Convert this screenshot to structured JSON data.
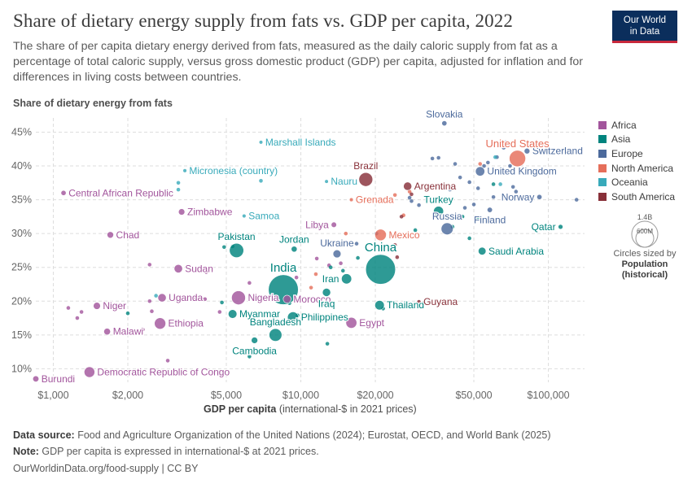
{
  "header": {
    "title": "Share of dietary energy supply from fats vs. GDP per capita, 2022",
    "subtitle": "The share of per capita dietary energy derived from fats, measured as the daily caloric supply from fat as a percentage of total caloric supply, versus gross domestic product (GDP) per capita, adjusted for inflation and for differences in living costs between countries.",
    "logo_line1": "Our World",
    "logo_line2": "in Data"
  },
  "axes": {
    "y_title": "Share of dietary energy from fats",
    "x_title_bold": "GDP per capita",
    "x_title_rest": " (international-$ in 2021 prices)"
  },
  "legend": {
    "regions": [
      {
        "name": "Africa",
        "color": "#a2559c"
      },
      {
        "name": "Asia",
        "color": "#00847e"
      },
      {
        "name": "Europe",
        "color": "#4c6a9c"
      },
      {
        "name": "North America",
        "color": "#e56e5a"
      },
      {
        "name": "Oceania",
        "color": "#38aaba"
      },
      {
        "name": "South America",
        "color": "#883039"
      }
    ],
    "size_key": {
      "large_label": "1.4B",
      "small_label": "600M",
      "note": "Circles sized by",
      "measure_line1": "Population",
      "measure_line2": "(historical)"
    }
  },
  "footer": {
    "source_label": "Data source:",
    "source_text": " Food and Agriculture Organization of the United Nations (2024); Eurostat, OECD, and World Bank (2025)",
    "note_label": "Note:",
    "note_text": " GDP per capita is expressed in international-$ at 2021 prices.",
    "link_text": "OurWorldinData.org/food-supply",
    "license_text": " | CC BY"
  },
  "chart_data": {
    "type": "scatter",
    "x_scale": "log",
    "xlim": [
      850,
      140000
    ],
    "ylim": [
      8,
      46.5
    ],
    "x_ticks": [
      {
        "value": 1000,
        "label": "$1,000"
      },
      {
        "value": 2000,
        "label": "$2,000"
      },
      {
        "value": 5000,
        "label": "$5,000"
      },
      {
        "value": 10000,
        "label": "$10,000"
      },
      {
        "value": 20000,
        "label": "$20,000"
      },
      {
        "value": 50000,
        "label": "$50,000"
      },
      {
        "value": 100000,
        "label": "$100,000"
      }
    ],
    "y_ticks": [
      {
        "value": 10,
        "label": "10%"
      },
      {
        "value": 15,
        "label": "15%"
      },
      {
        "value": 20,
        "label": "20%"
      },
      {
        "value": 25,
        "label": "25%"
      },
      {
        "value": 30,
        "label": "30%"
      },
      {
        "value": 35,
        "label": "35%"
      },
      {
        "value": 40,
        "label": "40%"
      },
      {
        "value": 45,
        "label": "45%"
      }
    ],
    "grid": true,
    "legend_position": "right",
    "labeled_points": [
      {
        "label": "Burundi",
        "x": 850,
        "y": 8.5,
        "region": "Africa",
        "pop": 13
      },
      {
        "label": "Democratic Republic of Congo",
        "x": 1400,
        "y": 9.5,
        "region": "Africa",
        "pop": 102
      },
      {
        "label": "Central African Republic",
        "x": 1100,
        "y": 36,
        "region": "Africa",
        "pop": 5
      },
      {
        "label": "Chad",
        "x": 1700,
        "y": 29.8,
        "region": "Africa",
        "pop": 18
      },
      {
        "label": "Niger",
        "x": 1500,
        "y": 19.3,
        "region": "Africa",
        "pop": 26
      },
      {
        "label": "Malawi",
        "x": 1650,
        "y": 15.5,
        "region": "Africa",
        "pop": 20
      },
      {
        "label": "Ethiopia",
        "x": 2700,
        "y": 16.7,
        "region": "Africa",
        "pop": 123
      },
      {
        "label": "Uganda",
        "x": 2750,
        "y": 20.5,
        "region": "Africa",
        "pop": 47
      },
      {
        "label": "Sudan",
        "x": 3200,
        "y": 24.8,
        "region": "Africa",
        "pop": 48
      },
      {
        "label": "Zimbabwe",
        "x": 3300,
        "y": 33.2,
        "region": "Africa",
        "pop": 16
      },
      {
        "label": "Nigeria",
        "x": 5600,
        "y": 20.5,
        "region": "Africa",
        "pop": 218
      },
      {
        "label": "Morocco",
        "x": 8800,
        "y": 20.3,
        "region": "Africa",
        "pop": 37
      },
      {
        "label": "Libya",
        "x": 13600,
        "y": 31.3,
        "region": "Africa",
        "pop": 7
      },
      {
        "label": "Egypt",
        "x": 16000,
        "y": 16.8,
        "region": "Africa",
        "pop": 111
      },
      {
        "label": "India",
        "x": 8500,
        "y": 21.7,
        "region": "Asia",
        "pop": 1420
      },
      {
        "label": "China",
        "x": 21000,
        "y": 24.7,
        "region": "Asia",
        "pop": 1412
      },
      {
        "label": "Pakistan",
        "x": 5500,
        "y": 27.5,
        "region": "Asia",
        "pop": 235
      },
      {
        "label": "Bangladesh",
        "x": 7900,
        "y": 15,
        "region": "Asia",
        "pop": 171
      },
      {
        "label": "Myanmar",
        "x": 5300,
        "y": 18.1,
        "region": "Asia",
        "pop": 54
      },
      {
        "label": "Philippines",
        "x": 9300,
        "y": 17.6,
        "region": "Asia",
        "pop": 115
      },
      {
        "label": "Cambodia",
        "x": 6500,
        "y": 14.2,
        "region": "Asia",
        "pop": 17
      },
      {
        "label": "Jordan",
        "x": 9400,
        "y": 27.7,
        "region": "Asia",
        "pop": 11
      },
      {
        "label": "Iraq",
        "x": 12700,
        "y": 21.3,
        "region": "Asia",
        "pop": 44
      },
      {
        "label": "Iran",
        "x": 15300,
        "y": 23.3,
        "region": "Asia",
        "pop": 89
      },
      {
        "label": "Thailand",
        "x": 20800,
        "y": 19.4,
        "region": "Asia",
        "pop": 71
      },
      {
        "label": "Turkey",
        "x": 36000,
        "y": 33.3,
        "region": "Asia",
        "pop": 85
      },
      {
        "label": "Saudi Arabia",
        "x": 54000,
        "y": 27.4,
        "region": "Asia",
        "pop": 36
      },
      {
        "label": "Qatar",
        "x": 112000,
        "y": 31,
        "region": "Asia",
        "pop": 3
      },
      {
        "label": "Slovakia",
        "x": 38000,
        "y": 46.3,
        "region": "Europe",
        "pop": 5
      },
      {
        "label": "Switzerland",
        "x": 82000,
        "y": 42.2,
        "region": "Europe",
        "pop": 9
      },
      {
        "label": "United Kingdom",
        "x": 53000,
        "y": 39.2,
        "region": "Europe",
        "pop": 67
      },
      {
        "label": "Norway",
        "x": 92000,
        "y": 35.4,
        "region": "Europe",
        "pop": 5
      },
      {
        "label": "Finland",
        "x": 58000,
        "y": 33.5,
        "region": "Europe",
        "pop": 6
      },
      {
        "label": "Russia",
        "x": 39000,
        "y": 30.7,
        "region": "Europe",
        "pop": 145
      },
      {
        "label": "Ukraine",
        "x": 14000,
        "y": 27,
        "region": "Europe",
        "pop": 40
      },
      {
        "label": "United States",
        "x": 75000,
        "y": 41.1,
        "region": "North America",
        "pop": 335
      },
      {
        "label": "Mexico",
        "x": 21000,
        "y": 29.8,
        "region": "North America",
        "pop": 128
      },
      {
        "label": "Grenada",
        "x": 16000,
        "y": 35,
        "region": "North America",
        "pop": 0.1
      },
      {
        "label": "Marshall Islands",
        "x": 6900,
        "y": 43.5,
        "region": "Oceania",
        "pop": 0.04
      },
      {
        "label": "Micronesia (country)",
        "x": 3400,
        "y": 39.3,
        "region": "Oceania",
        "pop": 0.1
      },
      {
        "label": "Nauru",
        "x": 12700,
        "y": 37.7,
        "region": "Oceania",
        "pop": 0.01
      },
      {
        "label": "Samoa",
        "x": 5900,
        "y": 32.6,
        "region": "Oceania",
        "pop": 0.2
      },
      {
        "label": "Brazil",
        "x": 18300,
        "y": 38,
        "region": "South America",
        "pop": 216
      },
      {
        "label": "Argentina",
        "x": 27000,
        "y": 37,
        "region": "South America",
        "pop": 46
      },
      {
        "label": "Guyana",
        "x": 30000,
        "y": 19.9,
        "region": "South America",
        "pop": 0.8
      }
    ],
    "unlabeled_points": [
      {
        "x": 1150,
        "y": 19,
        "region": "Africa"
      },
      {
        "x": 1250,
        "y": 17.5,
        "region": "Africa"
      },
      {
        "x": 1300,
        "y": 18.4,
        "region": "Africa"
      },
      {
        "x": 2300,
        "y": 15.8,
        "region": "Africa"
      },
      {
        "x": 2500,
        "y": 18.5,
        "region": "Africa"
      },
      {
        "x": 2900,
        "y": 11.2,
        "region": "Africa"
      },
      {
        "x": 2450,
        "y": 20,
        "region": "Africa"
      },
      {
        "x": 2450,
        "y": 25.4,
        "region": "Africa"
      },
      {
        "x": 3700,
        "y": 20.3,
        "region": "Africa"
      },
      {
        "x": 3900,
        "y": 20.5,
        "region": "Africa"
      },
      {
        "x": 4100,
        "y": 20.3,
        "region": "Africa"
      },
      {
        "x": 4150,
        "y": 24.3,
        "region": "Africa"
      },
      {
        "x": 4700,
        "y": 18.4,
        "region": "Africa"
      },
      {
        "x": 6200,
        "y": 22.7,
        "region": "Africa"
      },
      {
        "x": 6500,
        "y": 17.8,
        "region": "Africa"
      },
      {
        "x": 9600,
        "y": 23.5,
        "region": "Africa"
      },
      {
        "x": 11600,
        "y": 26.3,
        "region": "Africa"
      },
      {
        "x": 13000,
        "y": 25.3,
        "region": "Africa"
      },
      {
        "x": 14500,
        "y": 25.6,
        "region": "Africa"
      },
      {
        "x": 12000,
        "y": 30.8,
        "region": "Africa"
      },
      {
        "x": 2000,
        "y": 18.2,
        "region": "Asia"
      },
      {
        "x": 4800,
        "y": 19.8,
        "region": "Asia"
      },
      {
        "x": 5300,
        "y": 28.1,
        "region": "Asia"
      },
      {
        "x": 4900,
        "y": 28,
        "region": "Asia"
      },
      {
        "x": 6200,
        "y": 11.8,
        "region": "Asia"
      },
      {
        "x": 9000,
        "y": 19.7,
        "region": "Asia"
      },
      {
        "x": 9700,
        "y": 17.9,
        "region": "Asia"
      },
      {
        "x": 9500,
        "y": 29.3,
        "region": "Asia"
      },
      {
        "x": 13200,
        "y": 25,
        "region": "Asia"
      },
      {
        "x": 12800,
        "y": 13.7,
        "region": "Asia"
      },
      {
        "x": 12500,
        "y": 19.5,
        "region": "Asia"
      },
      {
        "x": 14800,
        "y": 24.5,
        "region": "Asia"
      },
      {
        "x": 17000,
        "y": 26.4,
        "region": "Asia"
      },
      {
        "x": 21500,
        "y": 18.9,
        "region": "Asia"
      },
      {
        "x": 29000,
        "y": 30.5,
        "region": "Asia"
      },
      {
        "x": 41000,
        "y": 31,
        "region": "Asia"
      },
      {
        "x": 45000,
        "y": 32.5,
        "region": "Asia"
      },
      {
        "x": 48000,
        "y": 29.3,
        "region": "Asia"
      },
      {
        "x": 52000,
        "y": 32.3,
        "region": "Asia"
      },
      {
        "x": 60000,
        "y": 37.3,
        "region": "Asia"
      },
      {
        "x": 14000,
        "y": 28.3,
        "region": "Europe"
      },
      {
        "x": 16800,
        "y": 28.5,
        "region": "Europe"
      },
      {
        "x": 20200,
        "y": 30,
        "region": "Europe"
      },
      {
        "x": 27500,
        "y": 35.3,
        "region": "Europe"
      },
      {
        "x": 28000,
        "y": 34.8,
        "region": "Europe"
      },
      {
        "x": 30000,
        "y": 34.2,
        "region": "Europe"
      },
      {
        "x": 34000,
        "y": 41.1,
        "region": "Europe"
      },
      {
        "x": 36000,
        "y": 41.2,
        "region": "Europe"
      },
      {
        "x": 40000,
        "y": 36.5,
        "region": "Europe"
      },
      {
        "x": 42000,
        "y": 40.3,
        "region": "Europe"
      },
      {
        "x": 44000,
        "y": 38.3,
        "region": "Europe"
      },
      {
        "x": 46000,
        "y": 33.8,
        "region": "Europe"
      },
      {
        "x": 48000,
        "y": 37.6,
        "region": "Europe"
      },
      {
        "x": 50000,
        "y": 34.3,
        "region": "Europe"
      },
      {
        "x": 52000,
        "y": 36.7,
        "region": "Europe"
      },
      {
        "x": 55000,
        "y": 40,
        "region": "Europe"
      },
      {
        "x": 57000,
        "y": 40.5,
        "region": "Europe"
      },
      {
        "x": 60000,
        "y": 35.4,
        "region": "Europe"
      },
      {
        "x": 62000,
        "y": 41.3,
        "region": "Europe"
      },
      {
        "x": 66000,
        "y": 42.7,
        "region": "Europe"
      },
      {
        "x": 67000,
        "y": 43.5,
        "region": "Europe"
      },
      {
        "x": 68000,
        "y": 35.4,
        "region": "Europe"
      },
      {
        "x": 70000,
        "y": 40,
        "region": "Europe"
      },
      {
        "x": 72000,
        "y": 36.9,
        "region": "Europe"
      },
      {
        "x": 74000,
        "y": 36.2,
        "region": "Europe"
      },
      {
        "x": 130000,
        "y": 35,
        "region": "Europe"
      },
      {
        "x": 11000,
        "y": 22,
        "region": "North America"
      },
      {
        "x": 11500,
        "y": 24,
        "region": "North America"
      },
      {
        "x": 13500,
        "y": 28.3,
        "region": "North America"
      },
      {
        "x": 15200,
        "y": 30,
        "region": "North America"
      },
      {
        "x": 18000,
        "y": 34.8,
        "region": "North America"
      },
      {
        "x": 24000,
        "y": 35.7,
        "region": "North America"
      },
      {
        "x": 26000,
        "y": 32.7,
        "region": "North America"
      },
      {
        "x": 27500,
        "y": 36.2,
        "region": "North America"
      },
      {
        "x": 53000,
        "y": 40.3,
        "region": "North America"
      },
      {
        "x": 2600,
        "y": 20.8,
        "region": "Oceania"
      },
      {
        "x": 3200,
        "y": 37.5,
        "region": "Oceania"
      },
      {
        "x": 3200,
        "y": 36.5,
        "region": "Oceania"
      },
      {
        "x": 6900,
        "y": 37.8,
        "region": "Oceania"
      },
      {
        "x": 61000,
        "y": 41.3,
        "region": "Oceania"
      },
      {
        "x": 64000,
        "y": 37.3,
        "region": "Oceania"
      },
      {
        "x": 24000,
        "y": 28.3,
        "region": "South America"
      },
      {
        "x": 24500,
        "y": 26.5,
        "region": "South America"
      },
      {
        "x": 25500,
        "y": 32.5,
        "region": "South America"
      },
      {
        "x": 28000,
        "y": 35.8,
        "region": "South America"
      }
    ]
  }
}
